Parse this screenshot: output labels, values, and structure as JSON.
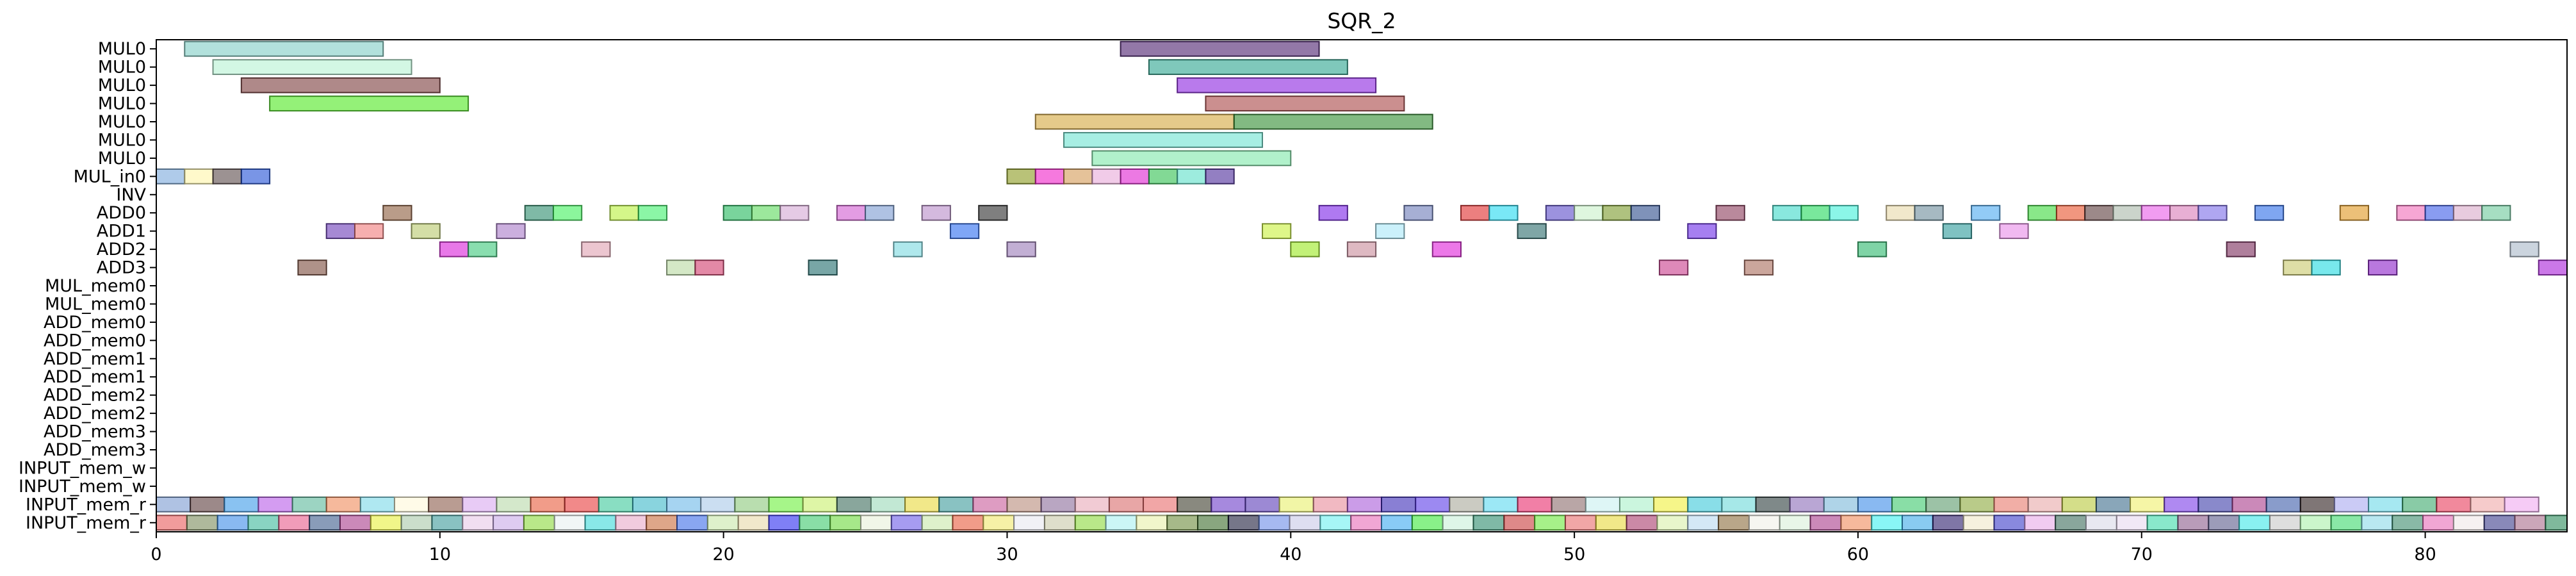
{
  "chart_data": {
    "type": "gantt",
    "title": "SQR_2",
    "xlim": [
      0,
      85
    ],
    "xticks": [
      0,
      10,
      20,
      30,
      40,
      50,
      60,
      70,
      80
    ],
    "rows": [
      "MUL0",
      "MUL0",
      "MUL0",
      "MUL0",
      "MUL0",
      "MUL0",
      "MUL0",
      "MUL_in0",
      "INV",
      "ADD0",
      "ADD1",
      "ADD2",
      "ADD3",
      "MUL_mem0",
      "MUL_mem0",
      "ADD_mem0",
      "ADD_mem0",
      "ADD_mem1",
      "ADD_mem1",
      "ADD_mem2",
      "ADD_mem2",
      "ADD_mem3",
      "ADD_mem3",
      "INPUT_mem_w",
      "INPUT_mem_w",
      "INPUT_mem_r",
      "INPUT_mem_r"
    ],
    "bars": [
      {
        "row": 0,
        "start": 1,
        "end": 8,
        "color": "#7fcdc4"
      },
      {
        "row": 0,
        "start": 34,
        "end": 41,
        "color": "#4b1e6e"
      },
      {
        "row": 1,
        "start": 2,
        "end": 9,
        "color": "#b5f2d2"
      },
      {
        "row": 1,
        "start": 35,
        "end": 42,
        "color": "#2aa38d"
      },
      {
        "row": 2,
        "start": 3,
        "end": 10,
        "color": "#7a3b3b"
      },
      {
        "row": 2,
        "start": 36,
        "end": 43,
        "color": "#8a22e0"
      },
      {
        "row": 3,
        "start": 4,
        "end": 11,
        "color": "#4de81e"
      },
      {
        "row": 3,
        "start": 37,
        "end": 44,
        "color": "#a84444"
      },
      {
        "row": 4,
        "start": 31,
        "end": 38,
        "color": "#d3a63c"
      },
      {
        "row": 4,
        "start": 38,
        "end": 45,
        "color": "#2f8c2f"
      },
      {
        "row": 5,
        "start": 32,
        "end": 39,
        "color": "#6de3d0"
      },
      {
        "row": 6,
        "start": 33,
        "end": 40,
        "color": "#7de8a8"
      },
      {
        "row": 7,
        "start": 0,
        "end": 1,
        "color": "#7aa9dc"
      },
      {
        "row": 7,
        "start": 1,
        "end": 2,
        "color": "#fff5a8"
      },
      {
        "row": 7,
        "start": 2,
        "end": 3,
        "color": "#5a4a4a"
      },
      {
        "row": 7,
        "start": 3,
        "end": 4,
        "color": "#1f4fd6"
      },
      {
        "row": 7,
        "start": 30,
        "end": 31,
        "color": "#8a9a1e"
      },
      {
        "row": 7,
        "start": 31,
        "end": 32,
        "color": "#f01fc8"
      },
      {
        "row": 7,
        "start": 32,
        "end": 33,
        "color": "#d39a55"
      },
      {
        "row": 7,
        "start": 33,
        "end": 34,
        "color": "#e8a8d8"
      },
      {
        "row": 7,
        "start": 34,
        "end": 35,
        "color": "#e01fd0"
      },
      {
        "row": 7,
        "start": 35,
        "end": 36,
        "color": "#2ec04e"
      },
      {
        "row": 7,
        "start": 36,
        "end": 37,
        "color": "#5be0c8"
      },
      {
        "row": 7,
        "start": 37,
        "end": 38,
        "color": "#4b2a9a"
      },
      {
        "row": 9,
        "start": 8,
        "end": 9,
        "color": "#8a5a3a"
      },
      {
        "row": 9,
        "start": 13,
        "end": 14,
        "color": "#2a8a6a"
      },
      {
        "row": 9,
        "start": 14,
        "end": 15,
        "color": "#3ef05a"
      },
      {
        "row": 9,
        "start": 16,
        "end": 17,
        "color": "#b8f03a"
      },
      {
        "row": 9,
        "start": 17,
        "end": 18,
        "color": "#3ef06a"
      },
      {
        "row": 9,
        "start": 20,
        "end": 21,
        "color": "#1fb85a"
      },
      {
        "row": 9,
        "start": 21,
        "end": 22,
        "color": "#5ad85a"
      },
      {
        "row": 9,
        "start": 22,
        "end": 23,
        "color": "#d3a6d3"
      },
      {
        "row": 9,
        "start": 24,
        "end": 25,
        "color": "#d05ad0"
      },
      {
        "row": 9,
        "start": 25,
        "end": 26,
        "color": "#7a9ad0"
      },
      {
        "row": 9,
        "start": 27,
        "end": 28,
        "color": "#b88ac8"
      },
      {
        "row": 9,
        "start": 29,
        "end": 30,
        "color": "#2a2a2a"
      },
      {
        "row": 9,
        "start": 41,
        "end": 42,
        "color": "#7a1fe8"
      },
      {
        "row": 9,
        "start": 44,
        "end": 45,
        "color": "#6a7ab8"
      },
      {
        "row": 9,
        "start": 46,
        "end": 47,
        "color": "#e02a2a"
      },
      {
        "row": 9,
        "start": 47,
        "end": 48,
        "color": "#1fd8f0"
      },
      {
        "row": 9,
        "start": 49,
        "end": 50,
        "color": "#5a4ac8"
      },
      {
        "row": 9,
        "start": 50,
        "end": 51,
        "color": "#c8f0c8"
      },
      {
        "row": 9,
        "start": 51,
        "end": 52,
        "color": "#7a9a2a"
      },
      {
        "row": 9,
        "start": 52,
        "end": 53,
        "color": "#2a4a8a"
      },
      {
        "row": 9,
        "start": 55,
        "end": 56,
        "color": "#8a3a5a"
      },
      {
        "row": 9,
        "start": 57,
        "end": 58,
        "color": "#3ad8c8"
      },
      {
        "row": 9,
        "start": 58,
        "end": 59,
        "color": "#1fd85a"
      },
      {
        "row": 9,
        "start": 59,
        "end": 60,
        "color": "#3ef0d8"
      },
      {
        "row": 9,
        "start": 61,
        "end": 62,
        "color": "#e8d8a8"
      },
      {
        "row": 9,
        "start": 62,
        "end": 63,
        "color": "#6a8a9a"
      },
      {
        "row": 9,
        "start": 64,
        "end": 65,
        "color": "#4aa8f0"
      },
      {
        "row": 9,
        "start": 66,
        "end": 67,
        "color": "#3ad83a"
      },
      {
        "row": 9,
        "start": 67,
        "end": 68,
        "color": "#e8502a"
      },
      {
        "row": 9,
        "start": 68,
        "end": 69,
        "color": "#5a3a3a"
      },
      {
        "row": 9,
        "start": 69,
        "end": 70,
        "color": "#a8b8a8"
      },
      {
        "row": 9,
        "start": 70,
        "end": 71,
        "color": "#e85ae8"
      },
      {
        "row": 9,
        "start": 71,
        "end": 72,
        "color": "#d87ab8"
      },
      {
        "row": 9,
        "start": 72,
        "end": 73,
        "color": "#7a6ae8"
      },
      {
        "row": 9,
        "start": 74,
        "end": 75,
        "color": "#2a6ae8"
      },
      {
        "row": 9,
        "start": 77,
        "end": 78,
        "color": "#e0961e"
      },
      {
        "row": 9,
        "start": 79,
        "end": 80,
        "color": "#f06ab8"
      },
      {
        "row": 9,
        "start": 80,
        "end": 81,
        "color": "#3a5ae8"
      },
      {
        "row": 9,
        "start": 81,
        "end": 82,
        "color": "#d8a8c8"
      },
      {
        "row": 9,
        "start": 82,
        "end": 83,
        "color": "#6ac89a"
      },
      {
        "row": 10,
        "start": 6,
        "end": 7,
        "color": "#6a3ab8"
      },
      {
        "row": 10,
        "start": 7,
        "end": 8,
        "color": "#f07a7a"
      },
      {
        "row": 10,
        "start": 9,
        "end": 10,
        "color": "#b8c86a"
      },
      {
        "row": 10,
        "start": 12,
        "end": 13,
        "color": "#a87ac8"
      },
      {
        "row": 10,
        "start": 28,
        "end": 29,
        "color": "#2a6af0"
      },
      {
        "row": 10,
        "start": 39,
        "end": 40,
        "color": "#c8f03a"
      },
      {
        "row": 10,
        "start": 43,
        "end": 44,
        "color": "#a8e8f8"
      },
      {
        "row": 10,
        "start": 48,
        "end": 49,
        "color": "#2a6a6a"
      },
      {
        "row": 10,
        "start": 54,
        "end": 55,
        "color": "#6a2ae8"
      },
      {
        "row": 10,
        "start": 63,
        "end": 64,
        "color": "#2a9a9a"
      },
      {
        "row": 10,
        "start": 65,
        "end": 66,
        "color": "#e88ae8"
      },
      {
        "row": 11,
        "start": 10,
        "end": 11,
        "color": "#d81ed8"
      },
      {
        "row": 11,
        "start": 11,
        "end": 12,
        "color": "#3ac87a"
      },
      {
        "row": 11,
        "start": 15,
        "end": 16,
        "color": "#e0a0b0"
      },
      {
        "row": 11,
        "start": 26,
        "end": 27,
        "color": "#7ad8e0"
      },
      {
        "row": 11,
        "start": 30,
        "end": 31,
        "color": "#9a7ab8"
      },
      {
        "row": 11,
        "start": 40,
        "end": 41,
        "color": "#9ae81e"
      },
      {
        "row": 11,
        "start": 42,
        "end": 43,
        "color": "#c88a9a"
      },
      {
        "row": 11,
        "start": 45,
        "end": 46,
        "color": "#e01ed8"
      },
      {
        "row": 11,
        "start": 60,
        "end": 61,
        "color": "#2ab86a"
      },
      {
        "row": 11,
        "start": 73,
        "end": 74,
        "color": "#7a2a5a"
      },
      {
        "row": 11,
        "start": 83,
        "end": 84,
        "color": "#a8b8c8"
      },
      {
        "row": 12,
        "start": 5,
        "end": 6,
        "color": "#7a4a3a"
      },
      {
        "row": 12,
        "start": 18,
        "end": 19,
        "color": "#b8d8a0"
      },
      {
        "row": 12,
        "start": 19,
        "end": 20,
        "color": "#d03a6a"
      },
      {
        "row": 12,
        "start": 23,
        "end": 24,
        "color": "#1e6a6a"
      },
      {
        "row": 12,
        "start": 53,
        "end": 54,
        "color": "#c83a8a"
      },
      {
        "row": 12,
        "start": 56,
        "end": 57,
        "color": "#a86a5a"
      },
      {
        "row": 12,
        "start": 75,
        "end": 76,
        "color": "#c8c86a"
      },
      {
        "row": 12,
        "start": 76,
        "end": 77,
        "color": "#1ed8e0"
      },
      {
        "row": 12,
        "start": 78,
        "end": 79,
        "color": "#8a1ec8"
      },
      {
        "row": 12,
        "start": 84,
        "end": 85,
        "color": "#a81ed8"
      }
    ],
    "input_rows": {
      "row_a": 25,
      "row_a_colors": [
        "#7a9ad0",
        "#5a3a3a",
        "#3a9ae8",
        "#b85ae8",
        "#5ab89a",
        "#f08a5a",
        "#7ad8e8",
        "#fff8d8",
        "#8a5a4a",
        "#d8a8f0",
        "#b8d8a8",
        "#e85a3a",
        "#e83a3a",
        "#3ac89a",
        "#3ab8c8",
        "#6ab8e8",
        "#a8c8e8",
        "#8ac87a",
        "#6af03a",
        "#c8f06a",
        "#3a6a5a",
        "#9ad8b8",
        "#e8d83a",
        "#3a9a9a",
        "#c85a9a",
        "#b88a7a",
        "#8a6a9a",
        "#e8a8b8",
        "#d86a6a",
        "#e86a6a",
        "#3a3a2a",
        "#6a3ac8",
        "#5a3ab8",
        "#e8f06a",
        "#e88a9a",
        "#a85ad8",
        "#3a2ab8",
        "#5a3ae8",
        "#a8a89a",
        "#5ad8f0",
        "#e82a6a",
        "#8a6a6a",
        "#c8f0f0",
        "#a8f0c8",
        "#f0f03a",
        "#3ac8d8",
        "#6ad8d8",
        "#2a3a3a",
        "#8a6ab8",
        "#7ab8d8",
        "#3a8ae8",
        "#3ac86a",
        "#5a9a6a",
        "#8aa83a",
        "#e8786a",
        "#e8a8a8",
        "#b8c83a",
        "#3a6a8a",
        "#f0f06a",
        "#7a3ae8",
        "#3a3aa8",
        "#a83a8a",
        "#3a5aa8",
        "#2a1a1a",
        "#a8a8f0",
        "#6ad8e8",
        "#3aa86a",
        "#e83a5a",
        "#f0a8a8",
        "#f0a8f0",
        "#c83ae8"
      ],
      "row_b": 26,
      "row_b_colors": [
        "#e85a5a",
        "#7a8a5a",
        "#3a8ae8",
        "#3ab89a",
        "#e85a8a",
        "#3a5a8a",
        "#a83a8a",
        "#e8f03a",
        "#a8c8a8",
        "#3a9a9a",
        "#e8c8e8",
        "#c8a8e8",
        "#8ad83a",
        "#e8f0f0",
        "#3ad8d8",
        "#e8a8c8",
        "#c86a3a",
        "#3a6ae8",
        "#c8e8a8",
        "#e8d8a8",
        "#2a2af0",
        "#3ac86a",
        "#6ad83a",
        "#e8f0d8",
        "#6a5ae8",
        "#c8e8a8",
        "#e85a3a",
        "#f0e86a",
        "#e8e8f0",
        "#c8c8a8",
        "#8ad83a",
        "#a8f0f0",
        "#e8f0a8",
        "#6a8a3a",
        "#3a6a2a",
        "#1a1a3a",
        "#6a8ae8",
        "#c8c8e8",
        "#6af0f0",
        "#e86ab8",
        "#3aa8f0",
        "#3ae83a",
        "#c8f0d8",
        "#2a8a6a",
        "#c83a3a",
        "#6ae83a",
        "#e86a6a",
        "#e8d83a",
        "#a83a6a",
        "#d8f0a8",
        "#b8d8f0",
        "#8a6a3a",
        "#f0f0e8",
        "#d8f0d8",
        "#a83a8a",
        "#f08a5a",
        "#3af0f0",
        "#3aa8e8",
        "#2a1a6a",
        "#f0e8c8",
        "#3a3ac8",
        "#e8a8e8",
        "#3a6a5a",
        "#d8d8e8",
        "#e8d8f0",
        "#3ad8a8",
        "#8a5a8a",
        "#5a5a8a",
        "#3ae8e8",
        "#c8c8c8",
        "#a8f0a8",
        "#3ad86a",
        "#8ad8e8",
        "#3a8a6a",
        "#e86ab8",
        "#f0e8e8",
        "#3a3a8a",
        "#a86a8a",
        "#2a8a5a"
      ]
    }
  }
}
